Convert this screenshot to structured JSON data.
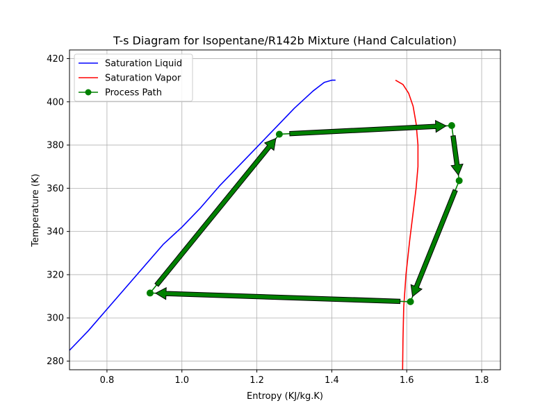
{
  "chart_data": {
    "type": "line",
    "title": "T-s Diagram for Isopentane/R142b Mixture (Hand Calculation)",
    "xlabel": "Entropy (KJ/kg.K)",
    "ylabel": "Temperature (K)",
    "xlim": [
      0.7,
      1.85
    ],
    "ylim": [
      276,
      424
    ],
    "xticks": [
      0.8,
      1.0,
      1.2,
      1.4,
      1.6,
      1.8
    ],
    "xtick_labels": [
      "0.8",
      "1.0",
      "1.2",
      "1.4",
      "1.6",
      "1.8"
    ],
    "yticks": [
      280,
      300,
      320,
      340,
      360,
      380,
      400,
      420
    ],
    "ytick_labels": [
      "280",
      "300",
      "320",
      "340",
      "360",
      "380",
      "400",
      "420"
    ],
    "grid": true,
    "legend_position": "top-left",
    "series": [
      {
        "name": "Saturation Liquid",
        "color": "#0000ff",
        "marker": "none",
        "x": [
          0.7,
          0.75,
          0.8,
          0.85,
          0.9,
          0.95,
          1.0,
          1.05,
          1.1,
          1.15,
          1.2,
          1.25,
          1.3,
          1.35,
          1.38,
          1.4,
          1.41
        ],
        "y": [
          285,
          294,
          304,
          314,
          324,
          334,
          342,
          351,
          361,
          370,
          379,
          388,
          397,
          405,
          409,
          410,
          410
        ]
      },
      {
        "name": "Saturation Vapor",
        "color": "#ff0000",
        "marker": "none",
        "x": [
          1.57,
          1.59,
          1.605,
          1.617,
          1.625,
          1.63,
          1.63,
          1.625,
          1.618,
          1.608,
          1.598,
          1.592,
          1.59,
          1.589
        ],
        "y": [
          410,
          408,
          404,
          398,
          390,
          380,
          370,
          360,
          350,
          336,
          320,
          305,
          290,
          276
        ]
      },
      {
        "name": "Process Path",
        "color": "#008000",
        "marker": "circle",
        "x": [
          1.26,
          1.72,
          1.74,
          1.61,
          0.915,
          1.26
        ],
        "y": [
          385,
          389,
          363.5,
          307.5,
          311.5,
          385
        ]
      }
    ]
  }
}
